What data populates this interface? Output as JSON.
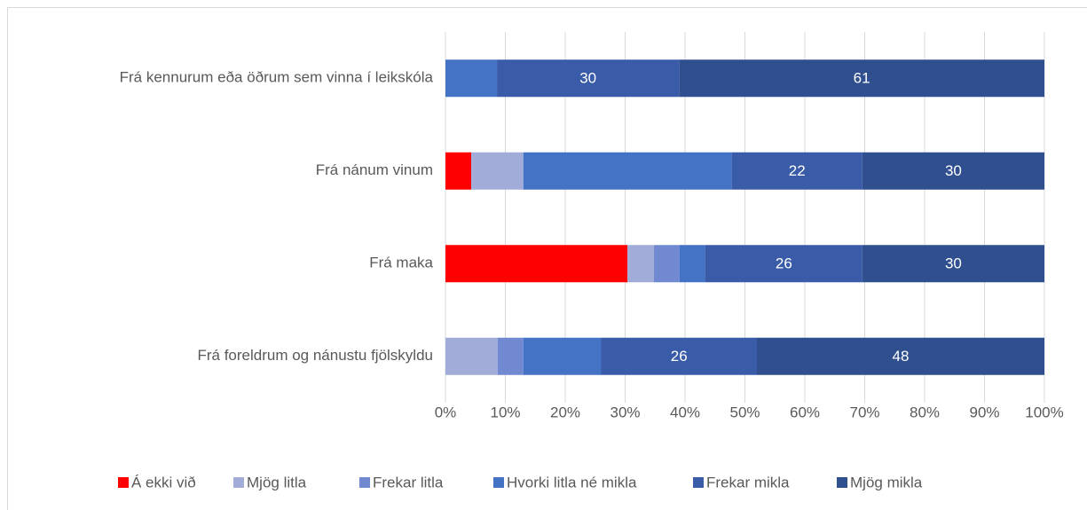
{
  "chart_data": {
    "type": "stacked_barh",
    "categories": [
      "Frá kennurum eða öðrum sem vinna í leikskóla",
      "Frá nánum vinum",
      "Frá maka",
      "Frá foreldrum og nánustu fjölskyldu"
    ],
    "series": [
      {
        "name": "Á ekki við",
        "color": "#ff0000",
        "values": [
          0,
          4.3,
          30.4,
          0
        ]
      },
      {
        "name": "Mjög litla",
        "color": "#a2acd9",
        "values": [
          0,
          8.7,
          4.4,
          8.7
        ]
      },
      {
        "name": "Frekar litla",
        "color": "#7189d0",
        "values": [
          0,
          0,
          4.3,
          4.3
        ]
      },
      {
        "name": "Hvorki litla né mikla",
        "color": "#4472c4",
        "values": [
          8.6,
          34.8,
          4.3,
          13
        ]
      },
      {
        "name": "Frekar mikla",
        "color": "#3a5ca8",
        "values": [
          30.4,
          21.8,
          26.2,
          26
        ],
        "value_labels": [
          "30",
          "22",
          "26",
          "26"
        ]
      },
      {
        "name": "Mjög mikla",
        "color": "#2f4f8f",
        "values": [
          61,
          30.4,
          30.4,
          48
        ],
        "value_labels": [
          "61",
          "30",
          "30",
          "48"
        ]
      }
    ],
    "xlim": [
      0,
      100
    ],
    "xticks": [
      {
        "value": 0,
        "label": "0%"
      },
      {
        "value": 10,
        "label": "10%"
      },
      {
        "value": 20,
        "label": "20%"
      },
      {
        "value": 30,
        "label": "30%"
      },
      {
        "value": 40,
        "label": "40%"
      },
      {
        "value": 50,
        "label": "50%"
      },
      {
        "value": 60,
        "label": "60%"
      },
      {
        "value": 70,
        "label": "70%"
      },
      {
        "value": 80,
        "label": "80%"
      },
      {
        "value": 90,
        "label": "90%"
      },
      {
        "value": 100,
        "label": "100%"
      }
    ],
    "grid": true,
    "legend": "bottom"
  }
}
